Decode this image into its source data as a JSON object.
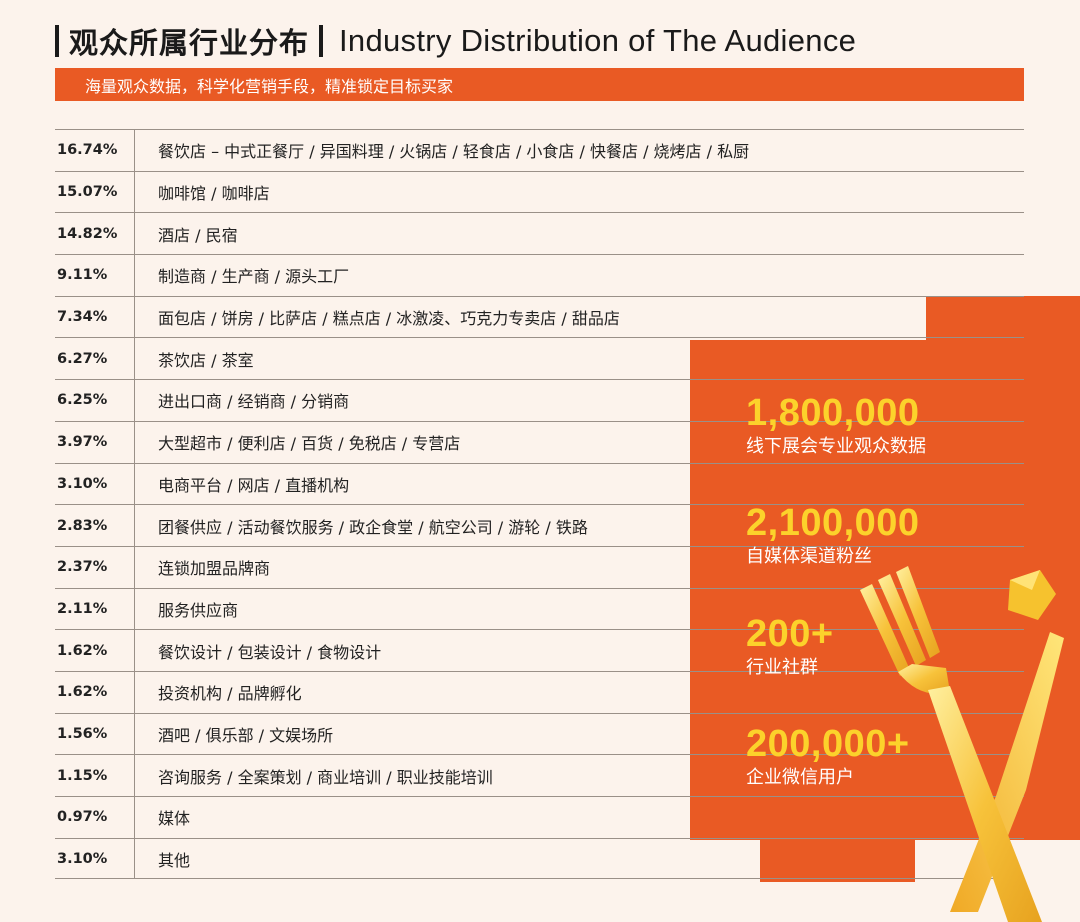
{
  "header": {
    "title_cn": "观众所属行业分布",
    "title_en": "Industry Distribution of The Audience",
    "subtitle": "海量观众数据，科学化营销手段，精准锁定目标买家"
  },
  "rows": [
    {
      "pct": "16.74%",
      "label": "餐饮店 – 中式正餐厅 / 异国料理 / 火锅店 / 轻食店 / 小食店 / 快餐店 / 烧烤店 / 私厨"
    },
    {
      "pct": "15.07%",
      "label": "咖啡馆 / 咖啡店"
    },
    {
      "pct": "14.82%",
      "label": "酒店 / 民宿"
    },
    {
      "pct": "9.11%",
      "label": "制造商 / 生产商 / 源头工厂"
    },
    {
      "pct": "7.34%",
      "label": "面包店 / 饼房 / 比萨店 / 糕点店 / 冰激凌、巧克力专卖店 / 甜品店"
    },
    {
      "pct": "6.27%",
      "label": "茶饮店 / 茶室"
    },
    {
      "pct": "6.25%",
      "label": "进出口商 / 经销商 / 分销商"
    },
    {
      "pct": "3.97%",
      "label": "大型超市 / 便利店 / 百货 / 免税店 / 专营店"
    },
    {
      "pct": "3.10%",
      "label": "电商平台 / 网店 / 直播机构"
    },
    {
      "pct": "2.83%",
      "label": "团餐供应 / 活动餐饮服务 / 政企食堂 / 航空公司 / 游轮 / 铁路"
    },
    {
      "pct": "2.37%",
      "label": "连锁加盟品牌商"
    },
    {
      "pct": "2.11%",
      "label": "服务供应商"
    },
    {
      "pct": "1.62%",
      "label": "餐饮设计 / 包装设计 / 食物设计"
    },
    {
      "pct": "1.62%",
      "label": "投资机构 / 品牌孵化"
    },
    {
      "pct": "1.56%",
      "label": "酒吧 / 俱乐部 / 文娱场所"
    },
    {
      "pct": "1.15%",
      "label": "咨询服务 / 全案策划 / 商业培训 / 职业技能培训"
    },
    {
      "pct": "0.97%",
      "label": "媒体"
    },
    {
      "pct": "3.10%",
      "label": "其他"
    }
  ],
  "stats": [
    {
      "number": "1,800,000",
      "desc": "线下展会专业观众数据"
    },
    {
      "number": "2,100,000",
      "desc": "自媒体渠道粉丝"
    },
    {
      "number": "200+",
      "desc": "行业社群"
    },
    {
      "number": "200,000+",
      "desc": "企业微信用户"
    }
  ],
  "colors": {
    "accent": "#e95a24",
    "highlight": "#fcd22b",
    "background": "#fcf3ec"
  },
  "decor": {
    "icon": "fork-icon",
    "shape": "gem-icon"
  }
}
